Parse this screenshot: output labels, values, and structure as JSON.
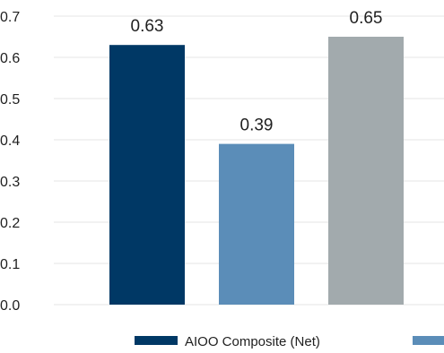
{
  "chart_data": {
    "type": "bar",
    "categories": [
      "",
      "",
      ""
    ],
    "values": [
      0.63,
      0.39,
      0.65
    ],
    "data_labels": [
      "0.63",
      "0.39",
      "0.65"
    ],
    "colors": [
      "#003865",
      "#5b8db8",
      "#a2aaad"
    ],
    "ylim": [
      0,
      0.7
    ],
    "yticks": [
      "0.0",
      "0.1",
      "0.2",
      "0.3",
      "0.4",
      "0.5",
      "0.6",
      "0.7"
    ],
    "grid": true,
    "legend_placement": "bottom",
    "legend": [
      {
        "label": "AIOO Composite (Net)",
        "color": "#003865"
      },
      {
        "label": "",
        "color": "#5b8db8"
      }
    ],
    "title": "",
    "xlabel": "",
    "ylabel": ""
  }
}
